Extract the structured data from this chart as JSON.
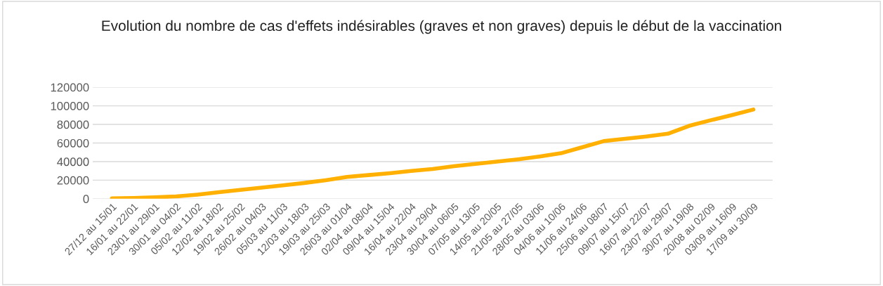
{
  "chart_data": {
    "type": "line",
    "title": "Evolution du nombre de cas d'effets indésirables (graves et non graves) depuis le début de la vaccination",
    "categories": [
      "27/12 au 15/01",
      "16/01 au 22/01",
      "23/01 au 29/01",
      "30/01 au 04/02",
      "05/02 au 11/02",
      "12/02 au 18/02",
      "19/02 au 25/02",
      "26/02 au 04/03",
      "05/03 au 11/03",
      "12/03 au 18/03",
      "19/03 au 25/03",
      "26/03 au 01/04",
      "02/04 au 08/04",
      "09/04 au 15/04",
      "16/04 au 22/04",
      "23/04 au 29/04",
      "30/04 au 06/05",
      "07/05 au 13/05",
      "14/05 au 20/05",
      "21/05 au 27/05",
      "28/05 au 03/06",
      "04/06 au 10/06",
      "11/06 au 24/06",
      "25/06 au 08/07",
      "09/07 au 15/07",
      "16/07 au 22/07",
      "23/07 au 29/07",
      "30/07 au 19/08",
      "20/08 au 02/09",
      "03/09 au 16/09",
      "17/09 au 30/09"
    ],
    "series": [
      {
        "color": "#ffb000",
        "values": [
          500,
          800,
          1500,
          2500,
          4500,
          7000,
          9500,
          12000,
          14500,
          17000,
          20000,
          23500,
          25500,
          27500,
          30000,
          32000,
          35000,
          37500,
          40000,
          42500,
          45500,
          49000,
          55500,
          62000,
          64500,
          67000,
          70000,
          78500,
          84500,
          90000,
          96000
        ]
      }
    ],
    "ylim": [
      0,
      120000
    ],
    "yticks": [
      0,
      20000,
      40000,
      60000,
      80000,
      100000,
      120000
    ],
    "grid": "y",
    "marker": "none",
    "line_style": "solid",
    "legend": false
  }
}
